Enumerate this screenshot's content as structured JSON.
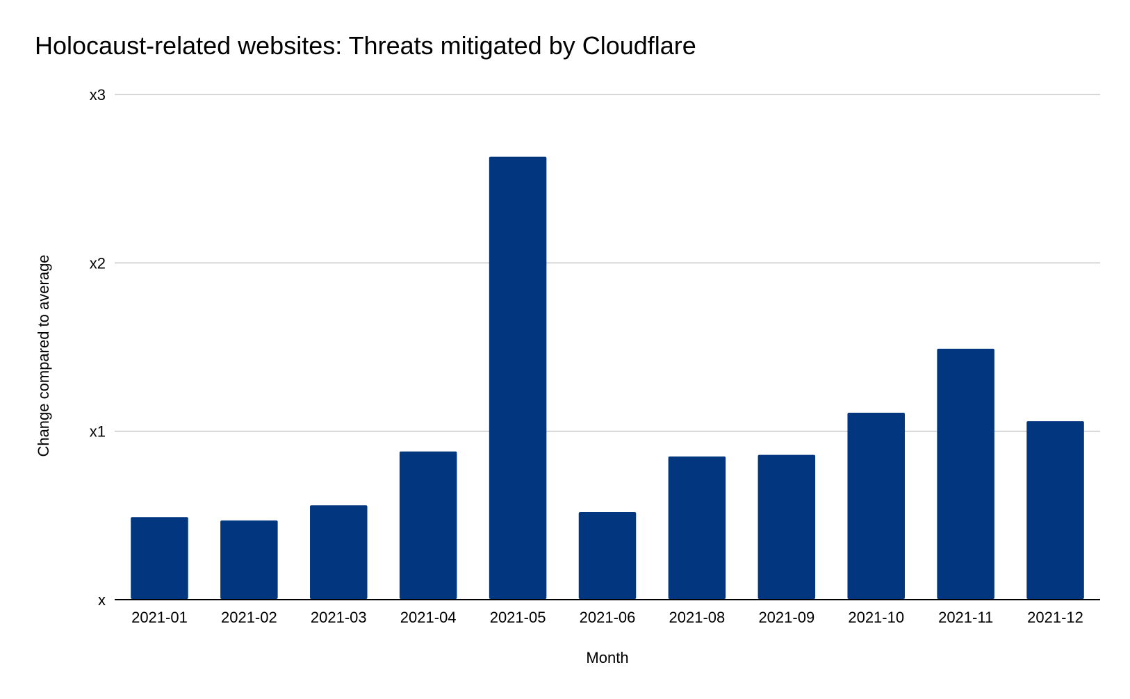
{
  "chart_data": {
    "type": "bar",
    "title": "Holocaust-related websites: Threats mitigated by Cloudflare",
    "xlabel": "Month",
    "ylabel": "Change compared to average",
    "categories": [
      "2021-01",
      "2021-02",
      "2021-03",
      "2021-04",
      "2021-05",
      "2021-06",
      "2021-08",
      "2021-09",
      "2021-10",
      "2021-11",
      "2021-12"
    ],
    "values": [
      0.49,
      0.47,
      0.56,
      0.88,
      2.63,
      0.52,
      0.85,
      0.86,
      1.11,
      1.49,
      1.06
    ],
    "ylim": [
      0,
      3
    ],
    "yticks": [
      {
        "value": 0,
        "label": "x"
      },
      {
        "value": 1,
        "label": "x1"
      },
      {
        "value": 2,
        "label": "x2"
      },
      {
        "value": 3,
        "label": "x3"
      }
    ],
    "grid": true,
    "legend": "none",
    "bar_color": "#02367f",
    "gridline_color": "#c8c8c8",
    "baseline_color": "#000000"
  }
}
